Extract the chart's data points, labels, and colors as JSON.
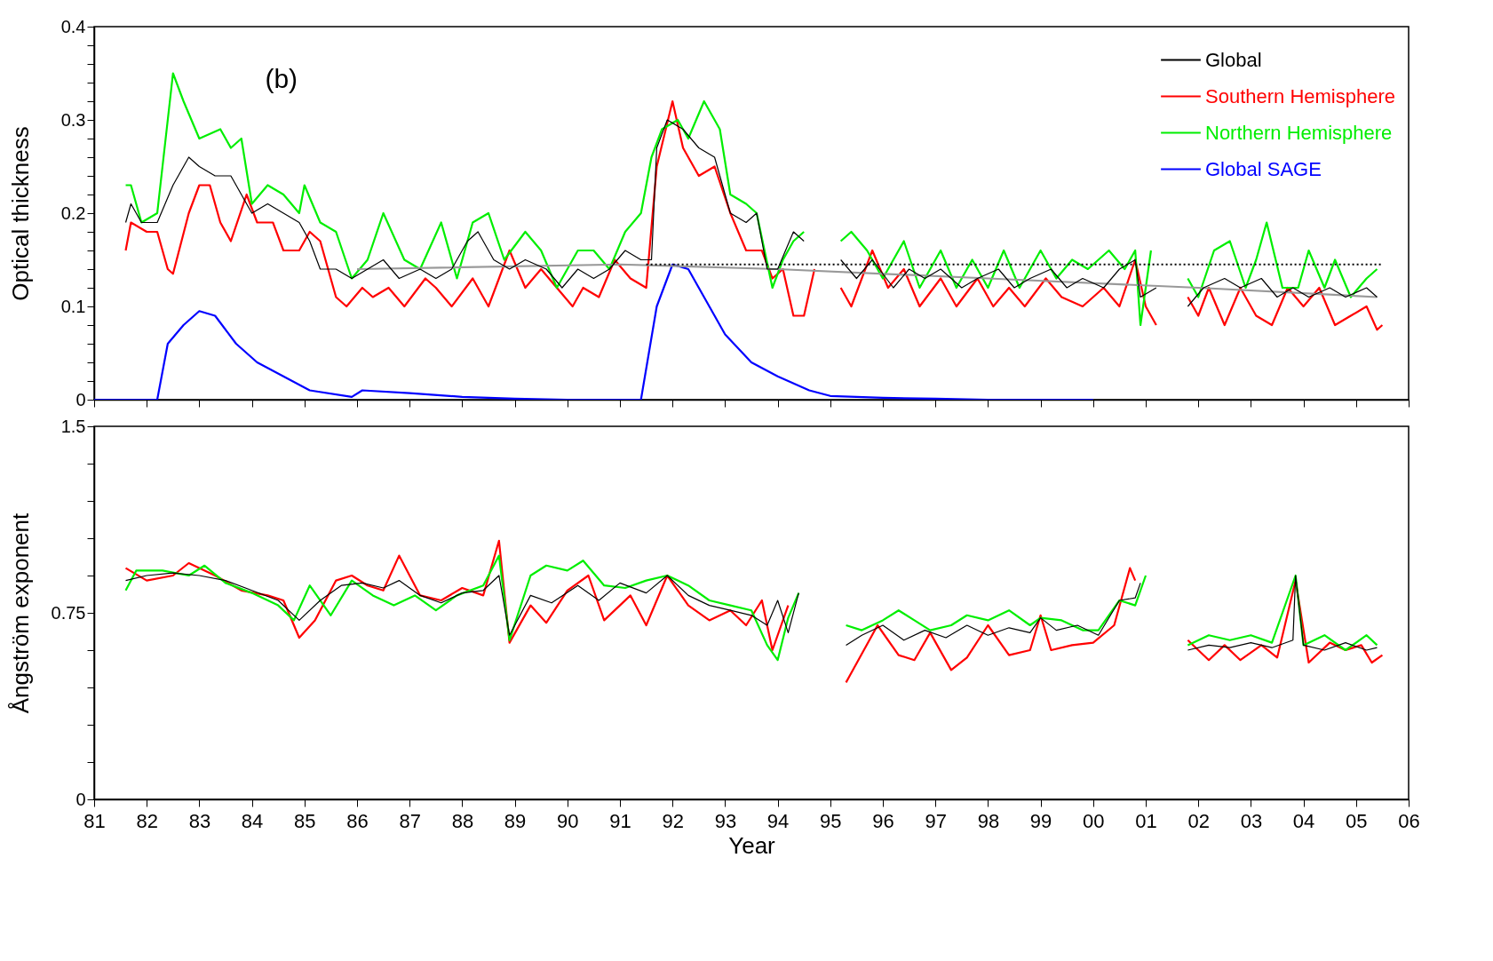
{
  "chart_data": [
    {
      "type": "line",
      "ylabel": "Optical thickness",
      "annotations": [
        "(b)"
      ],
      "legend": "top right",
      "tick_labels": "y",
      "grid": false,
      "xlim": [
        1981,
        2006
      ],
      "xticks": [
        {
          "value": 1981,
          "label": null
        },
        {
          "value": 1982,
          "label": null
        },
        {
          "value": 1983,
          "label": null
        },
        {
          "value": 1984,
          "label": null
        },
        {
          "value": 1985,
          "label": null
        },
        {
          "value": 1986,
          "label": null
        },
        {
          "value": 1987,
          "label": null
        },
        {
          "value": 1988,
          "label": null
        },
        {
          "value": 1989,
          "label": null
        },
        {
          "value": 1990,
          "label": null
        },
        {
          "value": 1991,
          "label": null
        },
        {
          "value": 1992,
          "label": null
        },
        {
          "value": 1993,
          "label": null
        },
        {
          "value": 1994,
          "label": null
        },
        {
          "value": 1995,
          "label": null
        },
        {
          "value": 1996,
          "label": null
        },
        {
          "value": 1997,
          "label": null
        },
        {
          "value": 1998,
          "label": null
        },
        {
          "value": 1999,
          "label": null
        },
        {
          "value": 2000,
          "label": null
        },
        {
          "value": 2001,
          "label": null
        },
        {
          "value": 2002,
          "label": null
        },
        {
          "value": 2003,
          "label": null
        },
        {
          "value": 2004,
          "label": null
        },
        {
          "value": 2005,
          "label": null
        },
        {
          "value": 2006,
          "label": null
        }
      ],
      "ylim": [
        0,
        0.4
      ],
      "yticks": [
        0,
        {
          "value": 0.02,
          "label": null
        },
        {
          "value": 0.04,
          "label": null
        },
        {
          "value": 0.06,
          "label": null
        },
        {
          "value": 0.08,
          "label": null
        },
        0.1,
        {
          "value": 0.12,
          "label": null
        },
        {
          "value": 0.14,
          "label": null
        },
        {
          "value": 0.16,
          "label": null
        },
        {
          "value": 0.18,
          "label": null
        },
        0.2,
        {
          "value": 0.22,
          "label": null
        },
        {
          "value": 0.24,
          "label": null
        },
        {
          "value": 0.26,
          "label": null
        },
        {
          "value": 0.28,
          "label": null
        },
        0.3,
        {
          "value": 0.32,
          "label": null
        },
        {
          "value": 0.34,
          "label": null
        },
        {
          "value": 0.36,
          "label": null
        },
        {
          "value": 0.38,
          "label": null
        },
        0.4
      ],
      "series": [
        {
          "name": "Global",
          "color": "#000000",
          "x": [
            1981.6,
            1981.7,
            1981.9,
            1982.2,
            1982.5,
            1982.8,
            1983.0,
            1983.3,
            1983.6,
            1983.8,
            1984.0,
            1984.3,
            1984.6,
            1984.9,
            1985.1,
            1985.3,
            1985.6,
            1985.9,
            1986.2,
            1986.5,
            1986.8,
            1987.2,
            1987.5,
            1987.8,
            1988.1,
            1988.3,
            1988.6,
            1988.9,
            1989.2,
            1989.6,
            1989.9,
            1990.2,
            1990.5,
            1990.8,
            1991.1,
            1991.4,
            1991.6,
            1991.7,
            1991.9,
            1992.2,
            1992.5,
            1992.8,
            1993.1,
            1993.4,
            1993.6,
            1993.8,
            1994.0,
            1994.3,
            1994.5,
            1994.85,
            1995.2,
            1995.5,
            1995.8,
            1996.2,
            1996.5,
            1996.8,
            1997.1,
            1997.5,
            1997.8,
            1998.2,
            1998.5,
            1998.8,
            1999.2,
            1999.5,
            1999.8,
            2000.2,
            2000.5,
            2000.8,
            2000.9,
            2001.2,
            2001.5,
            2001.8,
            2002.1,
            2002.5,
            2002.8,
            2003.2,
            2003.5,
            2003.8,
            2004.1,
            2004.5,
            2004.8,
            2005.2,
            2005.4
          ],
          "values": [
            0.19,
            0.21,
            0.19,
            0.19,
            0.23,
            0.26,
            0.25,
            0.24,
            0.24,
            0.22,
            0.2,
            0.21,
            0.2,
            0.19,
            0.17,
            0.14,
            0.14,
            0.13,
            0.14,
            0.15,
            0.13,
            0.14,
            0.13,
            0.14,
            0.17,
            0.18,
            0.15,
            0.14,
            0.15,
            0.14,
            0.12,
            0.14,
            0.13,
            0.14,
            0.16,
            0.15,
            0.15,
            0.27,
            0.3,
            0.29,
            0.27,
            0.26,
            0.2,
            0.19,
            0.2,
            0.14,
            0.14,
            0.18,
            0.17,
            null,
            0.15,
            0.13,
            0.15,
            0.12,
            0.14,
            0.13,
            0.14,
            0.12,
            0.13,
            0.14,
            0.12,
            0.13,
            0.14,
            0.12,
            0.13,
            0.12,
            0.14,
            0.15,
            0.11,
            0.12,
            null,
            0.1,
            0.12,
            0.13,
            0.12,
            0.13,
            0.11,
            0.12,
            0.11,
            0.12,
            0.11,
            0.12,
            0.11
          ]
        },
        {
          "name": "Southern Hemisphere",
          "color": "#ff0000",
          "x": [
            1981.6,
            1981.7,
            1982.0,
            1982.2,
            1982.4,
            1982.5,
            1982.8,
            1983.0,
            1983.2,
            1983.4,
            1983.6,
            1983.9,
            1984.1,
            1984.4,
            1984.6,
            1984.9,
            1985.1,
            1985.3,
            1985.6,
            1985.8,
            1986.1,
            1986.3,
            1986.6,
            1986.9,
            1987.3,
            1987.5,
            1987.8,
            1988.2,
            1988.5,
            1988.9,
            1989.2,
            1989.5,
            1989.8,
            1990.1,
            1990.3,
            1990.6,
            1990.9,
            1991.2,
            1991.5,
            1991.7,
            1992.0,
            1992.2,
            1992.5,
            1992.8,
            1993.1,
            1993.4,
            1993.7,
            1993.9,
            1994.1,
            1994.3,
            1994.5,
            1994.7,
            1994.95,
            1995.2,
            1995.4,
            1995.8,
            1996.1,
            1996.4,
            1996.7,
            1997.1,
            1997.4,
            1997.8,
            1998.1,
            1998.4,
            1998.7,
            1999.1,
            1999.4,
            1999.8,
            2000.2,
            2000.5,
            2000.8,
            2001.0,
            2001.2,
            2001.5,
            2001.8,
            2002.0,
            2002.2,
            2002.5,
            2002.8,
            2003.1,
            2003.4,
            2003.7,
            2004.0,
            2004.3,
            2004.6,
            2004.9,
            2005.2,
            2005.4,
            2005.5
          ],
          "values": [
            0.16,
            0.19,
            0.18,
            0.18,
            0.14,
            0.135,
            0.2,
            0.23,
            0.23,
            0.19,
            0.17,
            0.22,
            0.19,
            0.19,
            0.16,
            0.16,
            0.18,
            0.17,
            0.11,
            0.1,
            0.12,
            0.11,
            0.12,
            0.1,
            0.13,
            0.12,
            0.1,
            0.13,
            0.1,
            0.16,
            0.12,
            0.14,
            0.12,
            0.1,
            0.12,
            0.11,
            0.15,
            0.13,
            0.12,
            0.25,
            0.32,
            0.27,
            0.24,
            0.25,
            0.2,
            0.16,
            0.16,
            0.13,
            0.14,
            0.09,
            0.09,
            0.14,
            null,
            0.12,
            0.1,
            0.16,
            0.12,
            0.14,
            0.1,
            0.13,
            0.1,
            0.13,
            0.1,
            0.12,
            0.1,
            0.13,
            0.11,
            0.1,
            0.12,
            0.1,
            0.15,
            0.1,
            0.08,
            null,
            0.11,
            0.09,
            0.12,
            0.08,
            0.12,
            0.09,
            0.08,
            0.12,
            0.1,
            0.12,
            0.08,
            0.09,
            0.1,
            0.075,
            0.08
          ]
        },
        {
          "name": "Northern Hemisphere",
          "color": "#00ee00",
          "x": [
            1981.6,
            1981.7,
            1981.9,
            1982.2,
            1982.5,
            1982.7,
            1983.0,
            1983.4,
            1983.6,
            1983.8,
            1984.0,
            1984.3,
            1984.6,
            1984.9,
            1985.0,
            1985.3,
            1985.6,
            1985.9,
            1986.2,
            1986.5,
            1986.9,
            1987.2,
            1987.6,
            1987.9,
            1988.2,
            1988.5,
            1988.8,
            1989.2,
            1989.5,
            1989.8,
            1990.2,
            1990.5,
            1990.8,
            1991.1,
            1991.4,
            1991.6,
            1991.8,
            1992.1,
            1992.3,
            1992.6,
            1992.9,
            1993.1,
            1993.4,
            1993.6,
            1993.9,
            1994.1,
            1994.3,
            1994.5,
            1994.85,
            1995.2,
            1995.4,
            1995.7,
            1996.0,
            1996.4,
            1996.7,
            1997.1,
            1997.4,
            1997.7,
            1998.0,
            1998.3,
            1998.6,
            1999.0,
            1999.3,
            1999.6,
            1999.9,
            2000.3,
            2000.6,
            2000.8,
            2000.9,
            2001.1,
            2001.5,
            2001.8,
            2002.0,
            2002.3,
            2002.6,
            2002.9,
            2003.1,
            2003.3,
            2003.6,
            2003.9,
            2004.1,
            2004.4,
            2004.6,
            2004.9,
            2005.2,
            2005.4
          ],
          "values": [
            0.23,
            0.23,
            0.19,
            0.2,
            0.35,
            0.32,
            0.28,
            0.29,
            0.27,
            0.28,
            0.21,
            0.23,
            0.22,
            0.2,
            0.23,
            0.19,
            0.18,
            0.13,
            0.15,
            0.2,
            0.15,
            0.14,
            0.19,
            0.13,
            0.19,
            0.2,
            0.15,
            0.18,
            0.16,
            0.12,
            0.16,
            0.16,
            0.14,
            0.18,
            0.2,
            0.26,
            0.29,
            0.3,
            0.28,
            0.32,
            0.29,
            0.22,
            0.21,
            0.2,
            0.12,
            0.15,
            0.17,
            0.18,
            null,
            0.17,
            0.18,
            0.16,
            0.13,
            0.17,
            0.12,
            0.16,
            0.12,
            0.15,
            0.12,
            0.16,
            0.12,
            0.16,
            0.13,
            0.15,
            0.14,
            0.16,
            0.14,
            0.16,
            0.08,
            0.16,
            null,
            0.13,
            0.11,
            0.16,
            0.17,
            0.12,
            0.15,
            0.19,
            0.12,
            0.12,
            0.16,
            0.12,
            0.15,
            0.11,
            0.13,
            0.14
          ]
        },
        {
          "name": "Global SAGE",
          "color": "#0000ff",
          "x": [
            1981.0,
            1982.2,
            1982.4,
            1982.7,
            1983.0,
            1983.3,
            1983.7,
            1984.1,
            1984.6,
            1985.1,
            1985.9,
            1986.1,
            1987.0,
            1988.0,
            1989.0,
            1990.0,
            1991.4,
            1991.7,
            1992.0,
            1992.3,
            1992.6,
            1993.0,
            1993.5,
            1994.0,
            1994.6,
            1995.0,
            1996.0,
            1997.0,
            1998.0,
            2000.0
          ],
          "values": [
            0,
            0,
            0.06,
            0.08,
            0.095,
            0.09,
            0.06,
            0.04,
            0.025,
            0.01,
            0.003,
            0.01,
            0.007,
            0.003,
            0.001,
            0,
            0,
            0.1,
            0.145,
            0.14,
            0.11,
            0.07,
            0.04,
            0.025,
            0.01,
            0.004,
            0.002,
            0.001,
            0,
            0
          ]
        },
        {
          "color": "#999999",
          "x": [
            1986,
            1991,
            1994,
            1998,
            2002,
            2005.4
          ],
          "values": [
            0.14,
            0.145,
            0.14,
            0.13,
            0.12,
            0.11
          ]
        },
        {
          "color": "#000000",
          "line_style": "dotted",
          "x": [
            1991.5,
            2005.5
          ],
          "values": [
            0.145,
            0.145
          ]
        }
      ]
    },
    {
      "type": "line",
      "ylabel": "Ångström exponent",
      "xlabel": "Year",
      "legend": false,
      "grid": false,
      "xlim": [
        1981,
        2006
      ],
      "xticks": [
        {
          "value": 1981,
          "label": "81"
        },
        {
          "value": 1982,
          "label": "82"
        },
        {
          "value": 1983,
          "label": "83"
        },
        {
          "value": 1984,
          "label": "84"
        },
        {
          "value": 1985,
          "label": "85"
        },
        {
          "value": 1986,
          "label": "86"
        },
        {
          "value": 1987,
          "label": "87"
        },
        {
          "value": 1988,
          "label": "88"
        },
        {
          "value": 1989,
          "label": "89"
        },
        {
          "value": 1990,
          "label": "90"
        },
        {
          "value": 1991,
          "label": "91"
        },
        {
          "value": 1992,
          "label": "92"
        },
        {
          "value": 1993,
          "label": "93"
        },
        {
          "value": 1994,
          "label": "94"
        },
        {
          "value": 1995,
          "label": "95"
        },
        {
          "value": 1996,
          "label": "96"
        },
        {
          "value": 1997,
          "label": "97"
        },
        {
          "value": 1998,
          "label": "98"
        },
        {
          "value": 1999,
          "label": "99"
        },
        {
          "value": 2000,
          "label": "00"
        },
        {
          "value": 2001,
          "label": "01"
        },
        {
          "value": 2002,
          "label": "02"
        },
        {
          "value": 2003,
          "label": "03"
        },
        {
          "value": 2004,
          "label": "04"
        },
        {
          "value": 2005,
          "label": "05"
        },
        {
          "value": 2006,
          "label": "06"
        }
      ],
      "ylim": [
        0,
        1.5
      ],
      "yticks": [
        0,
        {
          "value": 0.15,
          "label": null
        },
        {
          "value": 0.3,
          "label": null
        },
        {
          "value": 0.45,
          "label": null
        },
        {
          "value": 0.6,
          "label": null
        },
        0.75,
        {
          "value": 0.9,
          "label": null
        },
        {
          "value": 1.05,
          "label": null
        },
        {
          "value": 1.2,
          "label": null
        },
        {
          "value": 1.35,
          "label": null
        },
        1.5
      ],
      "series": [
        {
          "name": "Global",
          "color": "#000000",
          "x": [
            1981.6,
            1982,
            1982.5,
            1983,
            1983.5,
            1984,
            1984.5,
            1984.9,
            1985.3,
            1985.7,
            1986.1,
            1986.5,
            1986.8,
            1987.2,
            1987.6,
            1988,
            1988.4,
            1988.7,
            1988.9,
            1989.3,
            1989.7,
            1990.2,
            1990.6,
            1991.0,
            1991.5,
            1991.9,
            1992.3,
            1992.7,
            1993.1,
            1993.5,
            1993.8,
            1994.0,
            1994.2,
            1994.4,
            1994.85,
            1995.3,
            1995.6,
            1996.0,
            1996.4,
            1996.8,
            1997.2,
            1997.6,
            1998.0,
            1998.4,
            1998.8,
            1999.0,
            1999.3,
            1999.7,
            2000.1,
            2000.5,
            2000.8,
            2000.9,
            2001.4,
            2001.8,
            2002.2,
            2002.6,
            2003.0,
            2003.4,
            2003.8,
            2003.85,
            2004.0,
            2004.4,
            2004.8,
            2005.2,
            2005.4
          ],
          "values": [
            0.88,
            0.9,
            0.91,
            0.9,
            0.88,
            0.84,
            0.8,
            0.72,
            0.8,
            0.86,
            0.87,
            0.85,
            0.88,
            0.82,
            0.79,
            0.83,
            0.84,
            0.9,
            0.66,
            0.82,
            0.79,
            0.86,
            0.8,
            0.87,
            0.83,
            0.9,
            0.82,
            0.78,
            0.76,
            0.74,
            0.7,
            0.8,
            0.67,
            0.83,
            null,
            0.62,
            0.66,
            0.7,
            0.64,
            0.68,
            0.65,
            0.7,
            0.66,
            0.69,
            0.67,
            0.73,
            0.68,
            0.7,
            0.66,
            0.8,
            0.81,
            0.87,
            null,
            0.6,
            0.62,
            0.61,
            0.63,
            0.61,
            0.64,
            0.9,
            0.62,
            0.6,
            0.63,
            0.6,
            0.61
          ]
        },
        {
          "name": "Southern Hemisphere",
          "color": "#ff0000",
          "x": [
            1981.6,
            1982,
            1982.5,
            1982.8,
            1983.3,
            1983.8,
            1984.3,
            1984.6,
            1984.9,
            1985.2,
            1985.6,
            1985.9,
            1986.2,
            1986.5,
            1986.8,
            1987.2,
            1987.6,
            1988.0,
            1988.4,
            1988.7,
            1988.9,
            1989.3,
            1989.6,
            1990.0,
            1990.4,
            1990.7,
            1991.2,
            1991.5,
            1991.9,
            1992.3,
            1992.7,
            1993.1,
            1993.4,
            1993.7,
            1993.9,
            1994.2,
            1994.75,
            1995.3,
            1995.9,
            1996.3,
            1996.6,
            1996.9,
            1997.3,
            1997.6,
            1998.0,
            1998.4,
            1998.8,
            1999.0,
            1999.2,
            1999.6,
            2000.0,
            2000.4,
            2000.7,
            2000.8,
            2001.3,
            2001.8,
            2002.2,
            2002.5,
            2002.8,
            2003.2,
            2003.5,
            2003.85,
            2004.1,
            2004.5,
            2004.8,
            2005.1,
            2005.3,
            2005.5
          ],
          "values": [
            0.93,
            0.88,
            0.9,
            0.95,
            0.9,
            0.84,
            0.82,
            0.8,
            0.65,
            0.72,
            0.88,
            0.9,
            0.86,
            0.84,
            0.98,
            0.82,
            0.8,
            0.85,
            0.82,
            1.04,
            0.63,
            0.78,
            0.71,
            0.84,
            0.9,
            0.72,
            0.82,
            0.7,
            0.9,
            0.78,
            0.72,
            0.76,
            0.7,
            0.8,
            0.6,
            0.78,
            null,
            0.47,
            0.7,
            0.58,
            0.56,
            0.67,
            0.52,
            0.57,
            0.7,
            0.58,
            0.6,
            0.74,
            0.6,
            0.62,
            0.63,
            0.7,
            0.93,
            0.88,
            null,
            0.64,
            0.56,
            0.62,
            0.56,
            0.62,
            0.57,
            0.88,
            0.55,
            0.63,
            0.6,
            0.62,
            0.55,
            0.58
          ]
        },
        {
          "name": "Northern Hemisphere",
          "color": "#00ee00",
          "x": [
            1981.6,
            1981.8,
            1982.3,
            1982.8,
            1983.1,
            1983.5,
            1984,
            1984.5,
            1984.8,
            1985.1,
            1985.5,
            1985.9,
            1986.3,
            1986.7,
            1987.1,
            1987.5,
            1987.9,
            1988.4,
            1988.7,
            1988.9,
            1989.3,
            1989.6,
            1990.0,
            1990.3,
            1990.7,
            1991.1,
            1991.5,
            1991.9,
            1992.3,
            1992.7,
            1993.1,
            1993.5,
            1993.8,
            1994.0,
            1994.2,
            1994.4,
            1994.85,
            1995.3,
            1995.6,
            1996.0,
            1996.3,
            1996.6,
            1996.9,
            1997.3,
            1997.6,
            1998.0,
            1998.4,
            1998.8,
            1999.0,
            1999.4,
            1999.8,
            2000.1,
            2000.5,
            2000.8,
            2001.0,
            2001.4,
            2001.8,
            2002.2,
            2002.6,
            2003.0,
            2003.4,
            2003.85,
            2004.0,
            2004.4,
            2004.8,
            2005.2,
            2005.4
          ],
          "values": [
            0.84,
            0.92,
            0.92,
            0.9,
            0.94,
            0.87,
            0.83,
            0.78,
            0.72,
            0.86,
            0.74,
            0.88,
            0.82,
            0.78,
            0.82,
            0.76,
            0.82,
            0.86,
            0.98,
            0.64,
            0.9,
            0.94,
            0.92,
            0.96,
            0.86,
            0.85,
            0.88,
            0.9,
            0.86,
            0.8,
            0.78,
            0.76,
            0.62,
            0.56,
            0.73,
            0.83,
            null,
            0.7,
            0.68,
            0.72,
            0.76,
            0.72,
            0.68,
            0.7,
            0.74,
            0.72,
            0.76,
            0.7,
            0.73,
            0.72,
            0.68,
            0.68,
            0.8,
            0.78,
            0.9,
            null,
            0.62,
            0.66,
            0.64,
            0.66,
            0.63,
            0.9,
            0.62,
            0.66,
            0.6,
            0.66,
            0.62
          ]
        }
      ]
    }
  ]
}
